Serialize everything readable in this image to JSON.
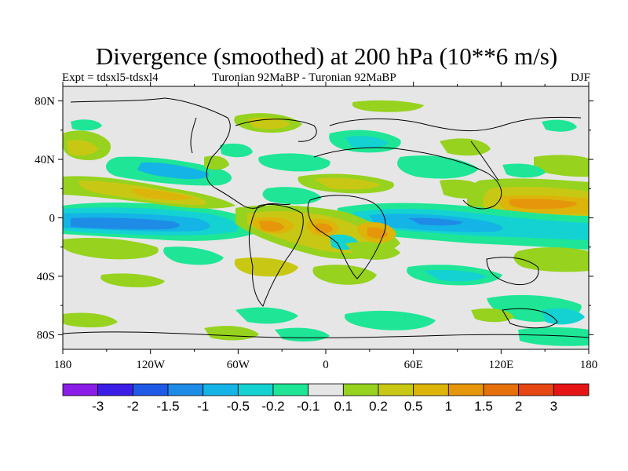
{
  "title": "Divergence (smoothed) at 200 hPa (10**6 m/s)",
  "subtitle_left": "Expt = tdsxl5-tdsxl4",
  "subtitle_center": "Turonian  92MaBP - Turonian  92MaBP",
  "subtitle_right": "DJF",
  "map": {
    "lon_range": [
      -180,
      180
    ],
    "lat_range": [
      -90,
      90
    ],
    "background_color": "#e6e6e6",
    "coastline_color": "#000000",
    "x_ticks": [
      {
        "lon": -180,
        "label": "180"
      },
      {
        "lon": -120,
        "label": "120W"
      },
      {
        "lon": -60,
        "label": "60W"
      },
      {
        "lon": 0,
        "label": "0"
      },
      {
        "lon": 60,
        "label": "60E"
      },
      {
        "lon": 120,
        "label": "120E"
      },
      {
        "lon": 180,
        "label": "180"
      }
    ],
    "y_ticks": [
      {
        "lat": 80,
        "label": "80N"
      },
      {
        "lat": 40,
        "label": "40N"
      },
      {
        "lat": 0,
        "label": "0"
      },
      {
        "lat": -40,
        "label": "40S"
      },
      {
        "lat": -80,
        "label": "80S"
      }
    ]
  },
  "colorbar": {
    "colors": [
      "#8a1ee8",
      "#3c1ee6",
      "#1e5ae6",
      "#1e8ce6",
      "#14b4e6",
      "#14d2d2",
      "#1ee696",
      "#e6e6e6",
      "#96d21e",
      "#c8c814",
      "#dcb40a",
      "#e6960a",
      "#e6700a",
      "#e64614",
      "#e61414"
    ],
    "labels": [
      "-3",
      "-2",
      "-1.5",
      "-1",
      "-0.5",
      "-0.2",
      "-0.1",
      "0.1",
      "0.2",
      "0.5",
      "1",
      "1.5",
      "2",
      "3"
    ]
  },
  "chart_data": {
    "type": "heatmap",
    "variable": "Divergence (smoothed) at 200 hPa",
    "units": "10**6 m/s",
    "experiment": "tdsxl5-tdsxl4",
    "season": "DJF",
    "x_axis": "longitude",
    "y_axis": "latitude",
    "xlim": [
      -180,
      180
    ],
    "ylim": [
      -90,
      90
    ],
    "contour_levels": [
      -3,
      -2,
      -1.5,
      -1,
      -0.5,
      -0.2,
      -0.1,
      0.1,
      0.2,
      0.5,
      1,
      1.5,
      2,
      3
    ],
    "features": [
      {
        "lon": -150,
        "lat": -5,
        "value": -1.0
      },
      {
        "lon": -120,
        "lat": -5,
        "value": -1.0
      },
      {
        "lon": -150,
        "lat": 28,
        "value": -0.5
      },
      {
        "lon": -110,
        "lat": 20,
        "value": 0.5
      },
      {
        "lon": -150,
        "lat": 12,
        "value": 0.5
      },
      {
        "lon": -40,
        "lat": -5,
        "value": 1.0
      },
      {
        "lon": 0,
        "lat": -5,
        "value": 1.0
      },
      {
        "lon": 40,
        "lat": -10,
        "value": 1.0
      },
      {
        "lon": 90,
        "lat": 10,
        "value": 0.5
      },
      {
        "lon": 150,
        "lat": 10,
        "value": 1.0
      },
      {
        "lon": 70,
        "lat": -5,
        "value": -0.5
      },
      {
        "lon": 120,
        "lat": -5,
        "value": -0.5
      },
      {
        "lon": -80,
        "lat": 10,
        "value": -0.5
      },
      {
        "lon": 160,
        "lat": -50,
        "value": -0.5
      },
      {
        "lon": 50,
        "lat": 50,
        "value": -0.2
      },
      {
        "lon": -20,
        "lat": 35,
        "value": -0.2
      },
      {
        "lon": -140,
        "lat": -40,
        "value": 0.2
      },
      {
        "lon": 120,
        "lat": 35,
        "value": 0.2
      }
    ]
  }
}
